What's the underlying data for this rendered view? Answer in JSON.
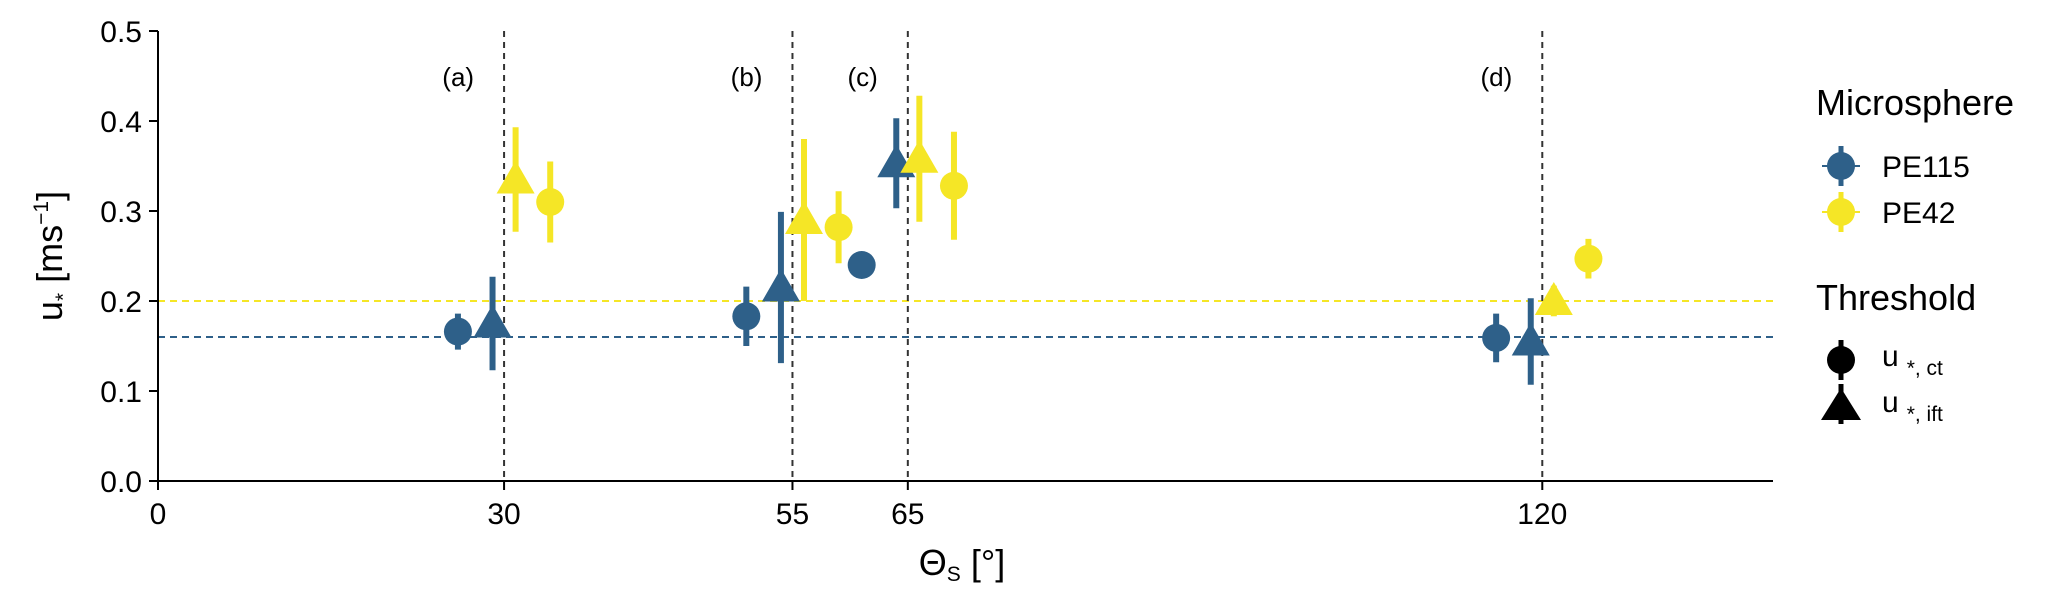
{
  "chart_data": {
    "type": "scatter",
    "xlabel": {
      "symbol": "Θ",
      "subscript": "S",
      "unit": " [°]"
    },
    "ylabel": {
      "symbol": "u",
      "subscript": "*",
      "unit_prefix": "  [ms",
      "unit_exp": "−1",
      "unit_suffix": "]"
    },
    "xlim": [
      0,
      140
    ],
    "ylim": [
      0,
      0.5
    ],
    "xticks": [
      0,
      30,
      55,
      65,
      120
    ],
    "yticks": [
      0.0,
      0.1,
      0.2,
      0.3,
      0.4,
      0.5
    ],
    "ytick_labels": [
      "0.0",
      "0.1",
      "0.2",
      "0.3",
      "0.4",
      "0.5"
    ],
    "grid": false,
    "colors": {
      "PE115": "#2e6089",
      "PE42": "#f5e626"
    },
    "vlines": [
      {
        "x": 30,
        "label": "(a)"
      },
      {
        "x": 55,
        "label": "(b)"
      },
      {
        "x": 65,
        "label": "(c)"
      },
      {
        "x": 120,
        "label": "(d)"
      }
    ],
    "hlines": [
      {
        "y": 0.16,
        "series": "PE115"
      },
      {
        "y": 0.2,
        "series": "PE42"
      }
    ],
    "series": [
      {
        "name": "PE115",
        "marker": "circle",
        "points": [
          {
            "x": 26,
            "y": 0.166,
            "err": 0.02
          },
          {
            "x": 51,
            "y": 0.183,
            "err": 0.033
          },
          {
            "x": 61,
            "y": 0.24,
            "err": 0.015
          },
          {
            "x": 116,
            "y": 0.159,
            "err": 0.027
          }
        ]
      },
      {
        "name": "PE115",
        "marker": "triangle",
        "points": [
          {
            "x": 29,
            "y": 0.175,
            "err": 0.052
          },
          {
            "x": 54,
            "y": 0.215,
            "err": 0.084
          },
          {
            "x": 64,
            "y": 0.353,
            "err": 0.05
          },
          {
            "x": 119,
            "y": 0.155,
            "err": 0.048
          }
        ]
      },
      {
        "name": "PE42",
        "marker": "triangle",
        "points": [
          {
            "x": 31,
            "y": 0.335,
            "err": 0.058
          },
          {
            "x": 56,
            "y": 0.29,
            "err": 0.09
          },
          {
            "x": 66,
            "y": 0.358,
            "err": 0.07
          },
          {
            "x": 121,
            "y": 0.2,
            "err": 0.017
          }
        ]
      },
      {
        "name": "PE42",
        "marker": "circle",
        "points": [
          {
            "x": 34,
            "y": 0.31,
            "err": 0.045
          },
          {
            "x": 59,
            "y": 0.282,
            "err": 0.04
          },
          {
            "x": 69,
            "y": 0.328,
            "err": 0.06
          },
          {
            "x": 124,
            "y": 0.247,
            "err": 0.022
          }
        ]
      }
    ],
    "legend": {
      "placement": "right",
      "microsphere_title": "Microsphere",
      "microsphere_items": [
        {
          "label": "PE115",
          "color": "#2e6089"
        },
        {
          "label": "PE42",
          "color": "#f5e626"
        }
      ],
      "threshold_title": "Threshold",
      "threshold_items": [
        {
          "symbol": "u",
          "sub": "*, ct",
          "marker": "circle"
        },
        {
          "symbol": "u",
          "sub": "*, ift",
          "marker": "triangle"
        }
      ]
    }
  }
}
